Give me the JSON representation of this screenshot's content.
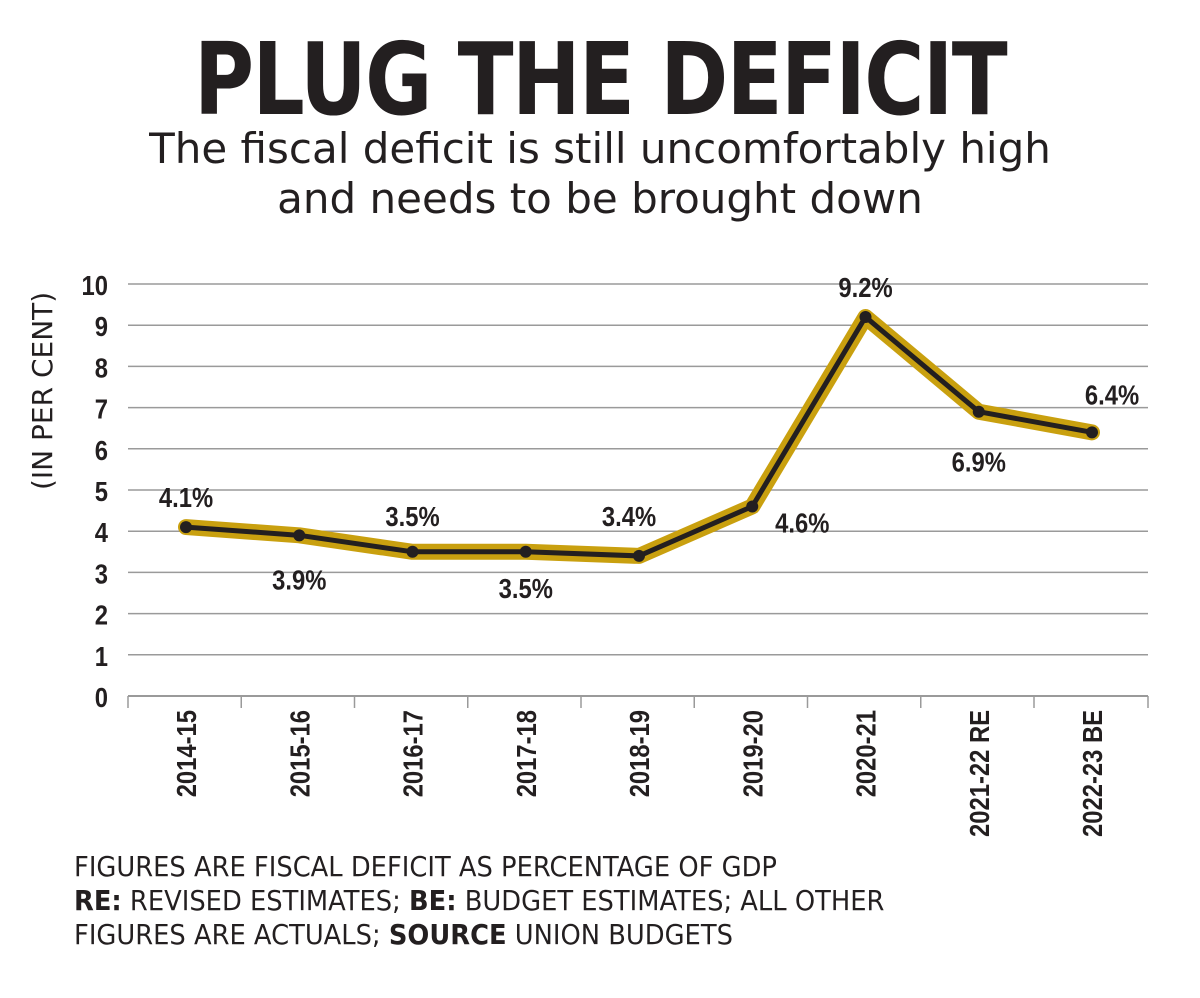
{
  "title": "PLUG THE DEFICIT",
  "subtitle_line1": "The fiscal deficit is still uncomfortably high",
  "subtitle_line2": "and needs to be brought down",
  "colors": {
    "line": "#231f20",
    "halo": "#c9a00f",
    "grid": "#9a9a9a"
  },
  "chart_data": {
    "type": "line",
    "ylabel": "(IN PER CENT)",
    "ylim": [
      0,
      10
    ],
    "yticks": [
      "0",
      "1",
      "2",
      "3",
      "4",
      "5",
      "6",
      "7",
      "8",
      "9",
      "10"
    ],
    "grid": true,
    "categories": [
      "2014-15",
      "2015-16",
      "2016-17",
      "2017-18",
      "2018-19",
      "2019-20",
      "2020-21",
      "2021-22 RE",
      "2022-23 BE"
    ],
    "values": [
      4.1,
      3.9,
      3.5,
      3.5,
      3.4,
      4.6,
      9.2,
      6.9,
      6.4
    ],
    "data_labels": [
      "4.1%",
      "3.9%",
      "3.5%",
      "3.5%",
      "3.4%",
      "4.6%",
      "9.2%",
      "6.9%",
      "6.4%"
    ]
  },
  "notes": {
    "line1": "FIGURES ARE FISCAL DEFICIT AS PERCENTAGE OF GDP",
    "re_key": "RE:",
    "re_text": " REVISED ESTIMATES; ",
    "be_key": "BE:",
    "be_text": " BUDGET ESTIMATES; ALL OTHER",
    "line3a": "FIGURES ARE ACTUALS; ",
    "source_key": "SOURCE",
    "source_text": " UNION BUDGETS"
  }
}
